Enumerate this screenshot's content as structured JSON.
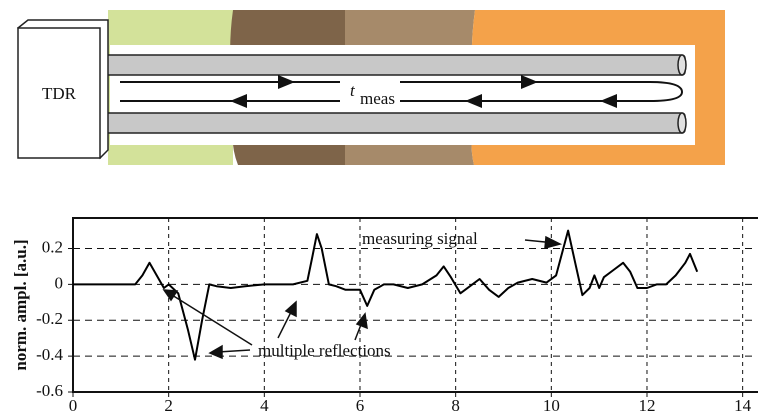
{
  "diagram": {
    "device": "TDR",
    "time_symbol": "t",
    "time_subscript": "meas"
  },
  "chart_data": {
    "type": "line",
    "y_label": "norm. ampl. [a.u.]",
    "x": [
      0,
      1.3,
      1.45,
      1.6,
      1.75,
      1.9,
      2.0,
      2.2,
      2.4,
      2.55,
      2.7,
      2.85,
      3.0,
      3.3,
      3.6,
      4.0,
      4.6,
      4.9,
      5.0,
      5.1,
      5.2,
      5.35,
      5.5,
      5.7,
      6.0,
      6.15,
      6.3,
      6.5,
      6.7,
      7.0,
      7.3,
      7.6,
      7.75,
      7.9,
      8.1,
      8.3,
      8.5,
      8.7,
      8.9,
      9.1,
      9.3,
      9.6,
      9.9,
      10.1,
      10.25,
      10.35,
      10.5,
      10.65,
      10.8,
      10.9,
      11.0,
      11.1,
      11.3,
      11.5,
      11.65,
      11.8,
      12.0,
      12.2,
      12.4,
      12.6,
      12.8,
      12.9,
      13.05
    ],
    "series": [
      {
        "color": "#000000",
        "values": [
          0,
          0,
          0.05,
          0.12,
          0.05,
          -0.02,
          0,
          -0.05,
          -0.25,
          -0.42,
          -0.2,
          0,
          -0.01,
          -0.02,
          -0.01,
          0,
          0,
          0.02,
          0.15,
          0.28,
          0.2,
          0,
          -0.01,
          -0.03,
          -0.03,
          -0.12,
          -0.03,
          0,
          0,
          -0.02,
          0,
          0.05,
          0.1,
          0.04,
          -0.05,
          -0.01,
          0.03,
          -0.03,
          -0.07,
          -0.02,
          0.01,
          0.03,
          0.01,
          0.05,
          0.2,
          0.3,
          0.12,
          -0.06,
          -0.02,
          0.05,
          -0.02,
          0.04,
          0.08,
          0.12,
          0.07,
          -0.02,
          -0.02,
          0,
          0,
          0.05,
          0.12,
          0.17,
          0.07
        ]
      }
    ],
    "xlim": [
      0,
      14.3
    ],
    "ylim": [
      -0.6,
      0.37
    ],
    "xticks": [
      0,
      2,
      4,
      6,
      8,
      10,
      12,
      14
    ],
    "yticks": [
      -0.6,
      -0.4,
      -0.2,
      0,
      0.2
    ],
    "grid": true,
    "annotations": [
      "measuring signal",
      "multiple reflections"
    ]
  }
}
